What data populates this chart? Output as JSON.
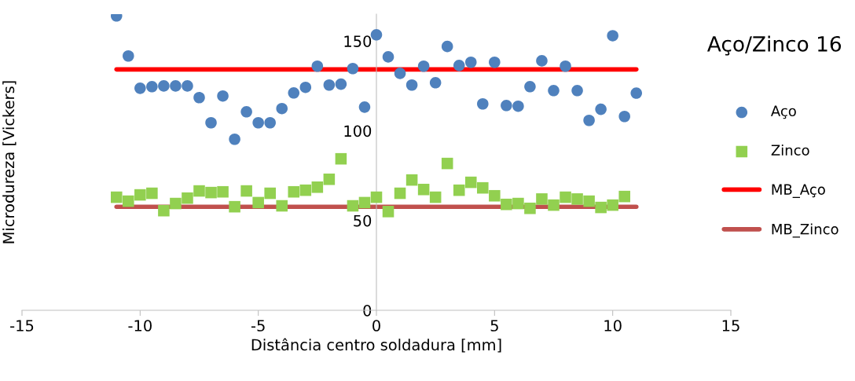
{
  "chart_data": {
    "type": "scatter",
    "title": "Aço/Zinco 16",
    "xlabel": "Distância centro soldadura [mm]",
    "ylabel": "Microdureza [Vickers]",
    "xlim": [
      -15,
      15
    ],
    "xticks": [
      -15,
      -10,
      -5,
      0,
      5,
      10,
      15
    ],
    "ylim": [
      0,
      165
    ],
    "yticks": [
      0,
      50,
      100,
      150
    ],
    "grid": false,
    "legend": "right",
    "series": [
      {
        "name": "Aço",
        "marker": "circle",
        "color": "#4f81bd",
        "x": [
          -11,
          -10.5,
          -10,
          -9.5,
          -9,
          -8.5,
          -8,
          -7.5,
          -7,
          -6.5,
          -6,
          -5.5,
          -5,
          -4.5,
          -4,
          -3.5,
          -3,
          -2.5,
          -2,
          -1.5,
          -1,
          -0.5,
          0,
          0.5,
          1,
          1.5,
          2,
          2.5,
          3,
          3.5,
          4,
          4.5,
          5,
          5.5,
          6,
          6.5,
          7,
          7.5,
          8,
          8.5,
          9,
          9.5,
          10,
          10.5,
          11
        ],
        "values": [
          164,
          141.7,
          123.7,
          124.6,
          125,
          125,
          125,
          118.5,
          104.5,
          119.4,
          95.3,
          110.6,
          104.5,
          104.5,
          112.4,
          121.1,
          124.2,
          136,
          125.5,
          126,
          134.7,
          113.2,
          153.5,
          141.2,
          132,
          125.5,
          136,
          126.8,
          147,
          136.4,
          138.2,
          115,
          138.2,
          114.1,
          113.7,
          124.6,
          139,
          122.4,
          136,
          122.4,
          105.8,
          112,
          153,
          108,
          121
        ]
      },
      {
        "name": "Zinco",
        "marker": "square",
        "color": "#92d050",
        "x": [
          -11,
          -10.5,
          -10,
          -9.5,
          -9,
          -8.5,
          -8,
          -7.5,
          -7,
          -6.5,
          -6,
          -5.5,
          -5,
          -4.5,
          -4,
          -3.5,
          -3,
          -2.5,
          -2,
          -1.5,
          -1,
          -0.5,
          0,
          0.5,
          1,
          1.5,
          2,
          2.5,
          3,
          3.5,
          4,
          4.5,
          5,
          5.5,
          6,
          6.5,
          7,
          7.5,
          8,
          8.5,
          9,
          9.5,
          10,
          10.5
        ],
        "values": [
          63,
          60.8,
          64.3,
          65.2,
          55.5,
          59.5,
          62.5,
          66.5,
          65.6,
          66,
          57.7,
          66.5,
          60,
          65.2,
          58.2,
          66,
          66.9,
          68.6,
          73,
          84.4,
          58.2,
          60,
          63,
          55,
          65.2,
          72.6,
          67.3,
          63,
          81.8,
          66.9,
          71.3,
          68.2,
          63.8,
          59,
          59.5,
          56.8,
          62,
          58.6,
          63,
          62,
          60.8,
          57.3,
          58.6,
          63.4
        ]
      },
      {
        "name": "MB_Aço",
        "type": "line",
        "marker": "none",
        "color": "#ff0000",
        "x": [
          -11,
          11
        ],
        "values": [
          134.2,
          134.2
        ]
      },
      {
        "name": "MB_Zinco",
        "type": "line",
        "marker": "none",
        "color": "#c0504d",
        "x": [
          -11,
          11
        ],
        "values": [
          57.7,
          57.7
        ]
      }
    ]
  }
}
